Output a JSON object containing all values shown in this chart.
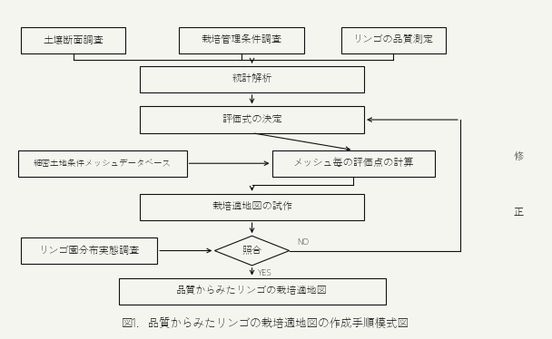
{
  "title": "図1．品質からみたリンゴの栽培適地図の作成手順模式図",
  "bg_color": "#f5f5f0",
  "boxes_row1": [
    "土壌断面調査",
    "栽培管理条件調査",
    "リンゴの品質測定"
  ],
  "box_toukei": "統計解析",
  "box_hyouka": "評価式の決定",
  "box_mesh_db": "細密土地条件メッシュデータベース",
  "box_mesh_calc": "メッシュ毎の評価点の計算",
  "box_shisaku": "栽培適地図の試作",
  "box_ringo": "リンゴ園分布実態調査",
  "box_shouga": "照合",
  "box_bottom": "品質からみたリンゴの栽培適地図",
  "side_shu": "修",
  "side_sei": "正",
  "label_no": "NO",
  "label_yes": "YES",
  "font_size_box": 8.0,
  "font_size_title": 9.0,
  "line_color": "#111111",
  "box_edge_color": "#111111",
  "box_face_color": "#f5f5f0"
}
